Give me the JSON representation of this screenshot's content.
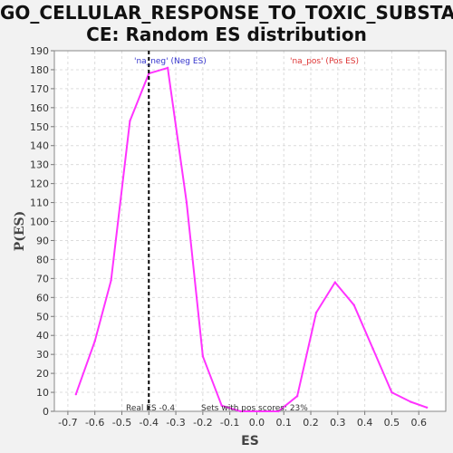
{
  "chart_data": {
    "type": "line",
    "title_lines": [
      "GO_CELLULAR_RESPONSE_TO_TOXIC_SUBSTAN",
      "CE: Random ES distribution"
    ],
    "xlabel": "ES",
    "ylabel": "P(ES)",
    "xlim": [
      -0.75,
      0.7
    ],
    "ylim": [
      0,
      190
    ],
    "x_ticks": [
      -0.7,
      -0.6,
      -0.5,
      -0.4,
      -0.3,
      -0.2,
      -0.1,
      0.0,
      0.1,
      0.2,
      0.3,
      0.4,
      0.5,
      0.6
    ],
    "x_tick_labels": [
      "-0.7",
      "-0.6",
      "-0.5",
      "-0.4",
      "-0.3",
      "-0.2",
      "-0.1",
      "0.0",
      "0.1",
      "0.2",
      "0.3",
      "0.4",
      "0.5",
      "0.6"
    ],
    "y_ticks": [
      0,
      10,
      20,
      30,
      40,
      50,
      60,
      70,
      80,
      90,
      100,
      110,
      120,
      130,
      140,
      150,
      160,
      170,
      180,
      190
    ],
    "grid": true,
    "series": [
      {
        "color": "#ff33ff",
        "x": [
          -0.67,
          -0.6,
          -0.54,
          -0.47,
          -0.4,
          -0.33,
          -0.26,
          -0.2,
          -0.13,
          -0.06,
          0.01,
          0.08,
          0.15,
          0.22,
          0.29,
          0.36,
          0.43,
          0.5,
          0.57,
          0.63
        ],
        "y": [
          9,
          37,
          69,
          153,
          178,
          181,
          110,
          29,
          3,
          0,
          0,
          0,
          8,
          52,
          68,
          56,
          33,
          10,
          5,
          2
        ]
      }
    ],
    "real_es_line": {
      "x": -0.4,
      "color": "#000000",
      "style": "dashed"
    },
    "annotations": {
      "neg": {
        "text": "'na_neg' (Neg ES)",
        "color": "#3333cc"
      },
      "pos": {
        "text": "'na_pos' (Pos ES)",
        "color": "#dd3333"
      },
      "real_es": {
        "text": "Real ES -0.4"
      },
      "sets_pos": {
        "text": "Sets with pos scores: 23%"
      }
    }
  }
}
